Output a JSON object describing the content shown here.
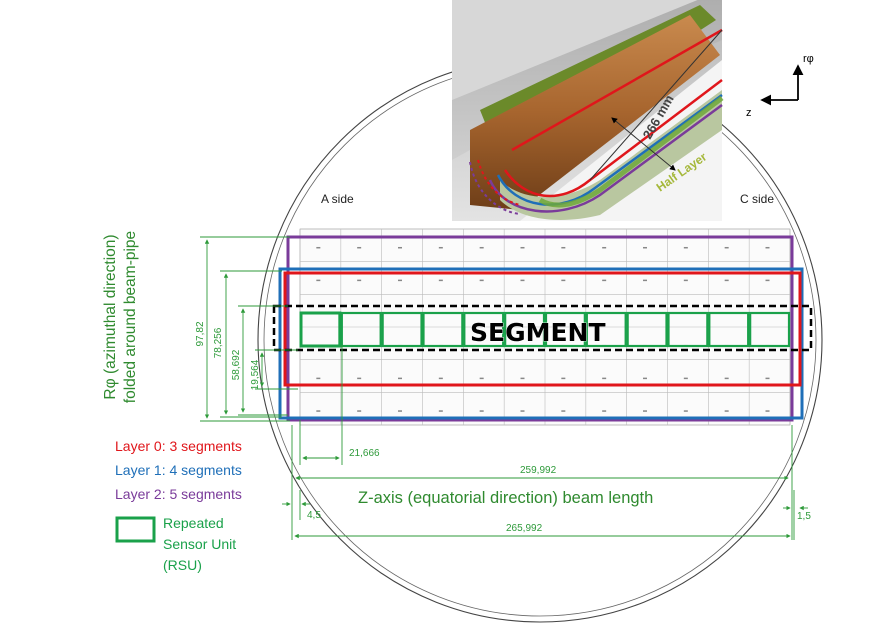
{
  "sides": {
    "a": "A side",
    "c": "C side"
  },
  "axes": {
    "rphi": "rφ",
    "z": "z"
  },
  "inset": {
    "length": "266 mm",
    "half_layer": "Half Layer"
  },
  "rphi_label": {
    "line1": "Rφ (azimuthal direction)",
    "line2": "folded around beam-pipe"
  },
  "z_label": "Z-axis (equatorial direction) beam length",
  "segment_label": "SEGMENT",
  "dimensions": {
    "d97": "97,82",
    "d78": "78,256",
    "d58": "58,692",
    "d19": "19,564",
    "d21": "21,666",
    "d259": "259,992",
    "d4": "4,5",
    "d1": "1,5",
    "d265": "265,992"
  },
  "legend": {
    "layer0": "Layer 0: 3 segments",
    "layer1": "Layer 1: 4 segments",
    "layer2": "Layer 2: 5 segments",
    "rsu_line1": "Repeated",
    "rsu_line2": "Sensor Unit",
    "rsu_line3": "(RSU)"
  },
  "colors": {
    "layer0": "#e0161b",
    "layer1": "#1f6fb8",
    "layer2": "#7a3b9a",
    "rsu": "#1aa14a",
    "dimension": "#2e9a3a",
    "label_green": "#2f8a2f"
  }
}
